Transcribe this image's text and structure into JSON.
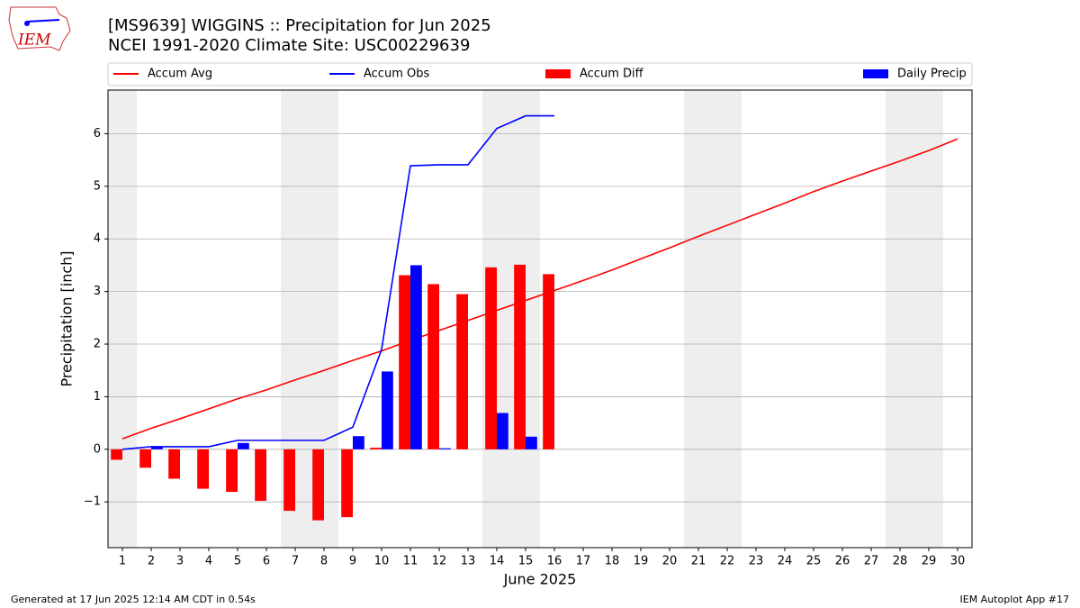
{
  "logo_text": "IEM",
  "chart_data": {
    "type": "combo",
    "title": "[MS9639] WIGGINS :: Precipitation for Jun 2025",
    "subtitle": "NCEI 1991-2020 Climate Site: USC00229639",
    "x_label": "June 2025",
    "y_label": "Precipitation [inch]",
    "x": [
      1,
      2,
      3,
      4,
      5,
      6,
      7,
      8,
      9,
      10,
      11,
      12,
      13,
      14,
      15,
      16,
      17,
      18,
      19,
      20,
      21,
      22,
      23,
      24,
      25,
      26,
      27,
      28,
      29,
      30
    ],
    "series": [
      {
        "name": "Accum Avg",
        "type": "line",
        "color": "#ff0000",
        "values": [
          0.2,
          0.4,
          0.58,
          0.77,
          0.96,
          1.13,
          1.32,
          1.5,
          1.69,
          1.87,
          2.07,
          2.26,
          2.45,
          2.64,
          2.83,
          3.02,
          3.21,
          3.41,
          3.62,
          3.83,
          4.05,
          4.26,
          4.47,
          4.68,
          4.9,
          5.1,
          5.29,
          5.48,
          5.68,
          5.9
        ]
      },
      {
        "name": "Accum Obs",
        "type": "line",
        "color": "#0000ff",
        "values": [
          0.0,
          0.05,
          0.05,
          0.05,
          0.17,
          0.17,
          0.17,
          0.17,
          0.42,
          1.9,
          5.39,
          5.41,
          5.41,
          6.1,
          6.34,
          6.34,
          null,
          null,
          null,
          null,
          null,
          null,
          null,
          null,
          null,
          null,
          null,
          null,
          null,
          null
        ]
      },
      {
        "name": "Accum Diff",
        "type": "bar",
        "color": "#ff0000",
        "values": [
          -0.2,
          -0.35,
          -0.56,
          -0.75,
          -0.81,
          -0.98,
          -1.17,
          -1.35,
          -1.29,
          0.03,
          3.31,
          3.14,
          2.95,
          3.46,
          3.51,
          3.33,
          null,
          null,
          null,
          null,
          null,
          null,
          null,
          null,
          null,
          null,
          null,
          null,
          null,
          null
        ]
      },
      {
        "name": "Daily Precip",
        "type": "bar",
        "color": "#0000ff",
        "values": [
          0.0,
          0.05,
          0.0,
          0.0,
          0.12,
          0.0,
          0.0,
          0.0,
          0.25,
          1.48,
          3.5,
          0.02,
          0.0,
          0.69,
          0.24,
          0.0,
          null,
          null,
          null,
          null,
          null,
          null,
          null,
          null,
          null,
          null,
          null,
          null,
          null,
          null
        ]
      }
    ],
    "shaded_spans": [
      [
        0.5,
        1.5
      ],
      [
        6.5,
        8.5
      ],
      [
        13.5,
        15.5
      ],
      [
        20.5,
        22.5
      ],
      [
        27.5,
        29.5
      ]
    ],
    "shade_color": "#eeeeee",
    "xlim": [
      0.5,
      30.5
    ],
    "xticks": [
      1,
      2,
      3,
      4,
      5,
      6,
      7,
      8,
      9,
      10,
      11,
      12,
      13,
      14,
      15,
      16,
      17,
      18,
      19,
      20,
      21,
      22,
      23,
      24,
      25,
      26,
      27,
      28,
      29,
      30
    ],
    "ylim": [
      -1.87,
      6.83
    ],
    "yticks": [
      {
        "value": -1,
        "label": "−1"
      },
      0,
      1,
      2,
      3,
      4,
      5,
      6
    ],
    "grid": true,
    "legend": "top"
  },
  "footer_left": "Generated at 17 Jun 2025 12:14 AM CDT in 0.54s",
  "footer_right": "IEM Autoplot App #17"
}
